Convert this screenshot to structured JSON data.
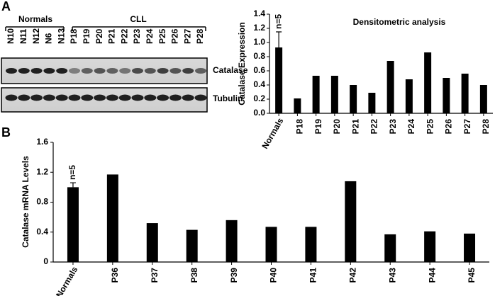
{
  "panel_labels": [
    "A",
    "B"
  ],
  "blot": {
    "groups": [
      "Normals",
      "CLL"
    ],
    "lanes": [
      "N10",
      "N11",
      "N12",
      "N6",
      "N13",
      "P18",
      "P19",
      "P20",
      "P21",
      "P22",
      "P23",
      "P24",
      "P25",
      "P26",
      "P27",
      "P28"
    ],
    "bands": [
      "Catalase",
      "Tubulin"
    ]
  },
  "chart_data": [
    {
      "type": "bar",
      "title": "Densitometric analysis",
      "y_label": "Catalase Expression",
      "categories": [
        "Normals",
        "P18",
        "P19",
        "P20",
        "P21",
        "P22",
        "P23",
        "P24",
        "P25",
        "P26",
        "P27",
        "P28"
      ],
      "values": [
        0.93,
        0.21,
        0.53,
        0.53,
        0.4,
        0.29,
        0.74,
        0.48,
        0.86,
        0.5,
        0.56,
        0.4
      ],
      "errors": [
        0.22,
        null,
        null,
        null,
        null,
        null,
        null,
        null,
        null,
        null,
        null,
        null
      ],
      "annotation": "n=5",
      "color": "#000000",
      "ylim": [
        0,
        1.4
      ],
      "yticks": [
        {
          "value": 0,
          "label": "0.0"
        },
        0.2,
        0.4,
        0.6,
        0.8,
        {
          "value": 1,
          "label": "1.0"
        },
        1.2,
        1.4
      ]
    },
    {
      "type": "bar",
      "y_label": "Catalase mRNA Levels",
      "categories": [
        "Normals",
        "P36",
        "P37",
        "P38",
        "P39",
        "P40",
        "P41",
        "P42",
        "P43",
        "P44",
        "P45"
      ],
      "values": [
        1.0,
        1.17,
        0.52,
        0.43,
        0.56,
        0.47,
        0.47,
        1.08,
        0.37,
        0.41,
        0.38
      ],
      "errors": [
        0.06,
        null,
        null,
        null,
        null,
        null,
        null,
        null,
        null,
        null,
        null
      ],
      "annotation": "n=5",
      "color": "#000000",
      "ylim": [
        0,
        1.6
      ],
      "yticks": [
        0,
        0.4,
        0.8,
        1.2,
        1.6
      ]
    }
  ]
}
